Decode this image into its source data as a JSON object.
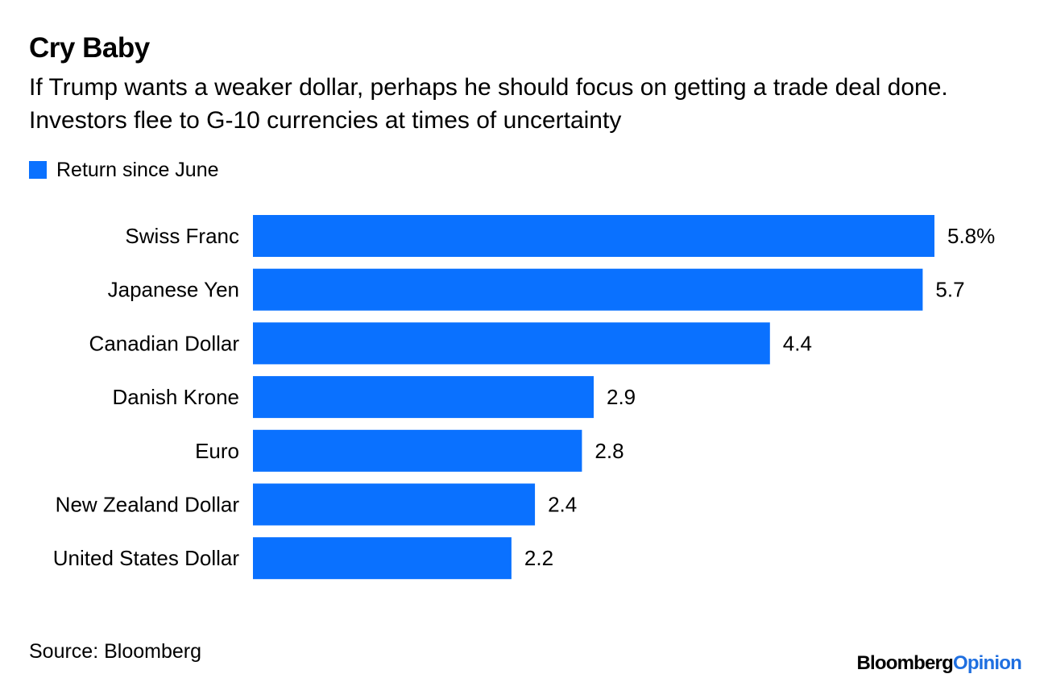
{
  "header": {
    "title": "Cry Baby",
    "subtitle": "If Trump wants a weaker dollar, perhaps he should focus on getting a trade deal done. Investors flee to G-10 currencies at times of uncertainty"
  },
  "legend": {
    "label": "Return since June",
    "color": "#0a71ff"
  },
  "chart_data": {
    "type": "bar",
    "orientation": "horizontal",
    "title": "Cry Baby",
    "subtitle": "If Trump wants a weaker dollar, perhaps he should focus on getting a trade deal done. Investors flee to G-10 currencies at times of uncertainty",
    "xlabel": "",
    "ylabel": "",
    "xlim": [
      0,
      5.8
    ],
    "grid": false,
    "legend_position": "top-left",
    "series": [
      {
        "name": "Return since June",
        "color": "#0a71ff",
        "values": [
          5.8,
          5.7,
          4.4,
          2.9,
          2.8,
          2.4,
          2.2
        ]
      }
    ],
    "categories": [
      "Swiss Franc",
      "Japanese Yen",
      "Canadian Dollar",
      "Danish Krone",
      "Euro",
      "New Zealand Dollar",
      "United States Dollar"
    ],
    "data_labels": [
      "5.8%",
      "5.7",
      "4.4",
      "2.9",
      "2.8",
      "2.4",
      "2.2"
    ]
  },
  "footer": {
    "source": "Source: Bloomberg",
    "brand_primary": "Bloomberg",
    "brand_secondary": "Opinion",
    "brand_secondary_color": "#1f6fe0"
  }
}
